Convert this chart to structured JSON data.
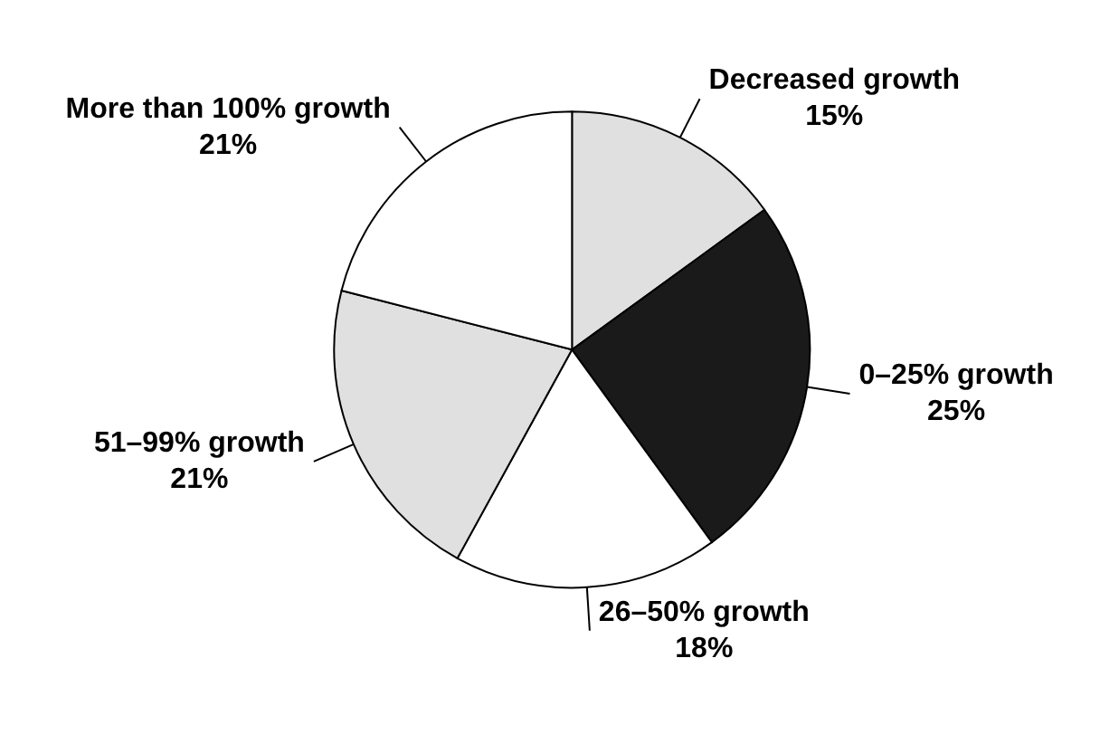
{
  "chart_data": {
    "type": "pie",
    "categories": [
      "Decreased growth",
      "0–25% growth",
      "26–50% growth",
      "51–99% growth",
      "More than 100% growth"
    ],
    "values": [
      15,
      25,
      18,
      21,
      21
    ],
    "value_labels": [
      "15%",
      "25%",
      "18%",
      "21%",
      "21%"
    ],
    "colors": [
      "#e0e0e0",
      "#1a1a1a",
      "#ffffff",
      "#e0e0e0",
      "#ffffff"
    ]
  }
}
